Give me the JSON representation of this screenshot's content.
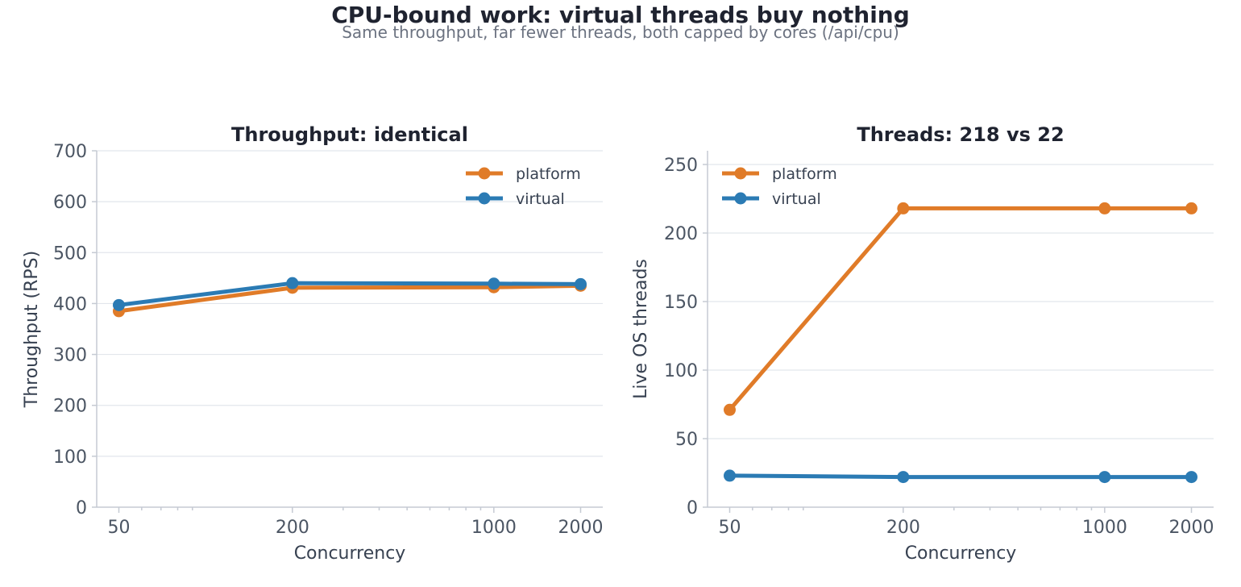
{
  "figure": {
    "title": "CPU-bound work: virtual threads buy nothing",
    "subtitle": "Same throughput, far fewer threads, both capped by cores (/api/cpu)"
  },
  "colors": {
    "platform": "#e07b28",
    "virtual": "#2b7bb4"
  },
  "chart_data": [
    {
      "type": "line",
      "title": "Throughput: identical",
      "xlabel": "Concurrency",
      "ylabel": "Throughput (RPS)",
      "xscale": "log",
      "x": [
        50,
        200,
        1000,
        2000
      ],
      "xticks": [
        "50",
        "200",
        "1000",
        "2000"
      ],
      "ylim": [
        0,
        700
      ],
      "yticks": [
        "0",
        "100",
        "200",
        "300",
        "400",
        "500",
        "600",
        "700"
      ],
      "grid": true,
      "legend": "top-right",
      "series": [
        {
          "name": "platform",
          "values": [
            385,
            431,
            432,
            435
          ]
        },
        {
          "name": "virtual",
          "values": [
            397,
            440,
            439,
            438
          ]
        }
      ]
    },
    {
      "type": "line",
      "title": "Threads: 218 vs 22",
      "xlabel": "Concurrency",
      "ylabel": "Live OS threads",
      "xscale": "log",
      "x": [
        50,
        200,
        1000,
        2000
      ],
      "xticks": [
        "50",
        "200",
        "1000",
        "2000"
      ],
      "ylim": [
        0,
        260
      ],
      "yticks": [
        "0",
        "50",
        "100",
        "150",
        "200",
        "250"
      ],
      "grid": true,
      "legend": "top-left",
      "series": [
        {
          "name": "platform",
          "values": [
            71,
            218,
            218,
            218
          ]
        },
        {
          "name": "virtual",
          "values": [
            23,
            22,
            22,
            22
          ]
        }
      ]
    }
  ]
}
